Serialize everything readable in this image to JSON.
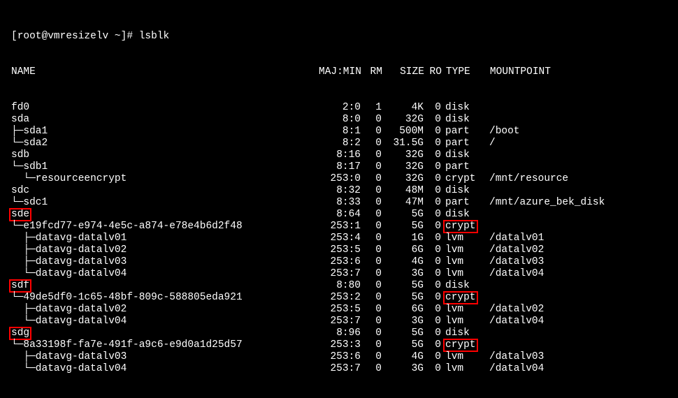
{
  "prompt": "[root@vmresizelv ~]# ",
  "command": "lsblk",
  "columns": [
    "NAME",
    "MAJ:MIN",
    "RM",
    "SIZE",
    "RO",
    "TYPE",
    "MOUNTPOINT"
  ],
  "highlight_color": "#ff0000",
  "rows": [
    {
      "name": "fd0",
      "prefix": "",
      "maj": "2:0",
      "rm": "1",
      "size": "4K",
      "ro": "0",
      "type": "disk",
      "mnt": "",
      "hl_name": false,
      "hl_type": false
    },
    {
      "name": "sda",
      "prefix": "",
      "maj": "8:0",
      "rm": "0",
      "size": "32G",
      "ro": "0",
      "type": "disk",
      "mnt": "",
      "hl_name": false,
      "hl_type": false
    },
    {
      "name": "sda1",
      "prefix": "├─",
      "maj": "8:1",
      "rm": "0",
      "size": "500M",
      "ro": "0",
      "type": "part",
      "mnt": "/boot",
      "hl_name": false,
      "hl_type": false
    },
    {
      "name": "sda2",
      "prefix": "└─",
      "maj": "8:2",
      "rm": "0",
      "size": "31.5G",
      "ro": "0",
      "type": "part",
      "mnt": "/",
      "hl_name": false,
      "hl_type": false
    },
    {
      "name": "sdb",
      "prefix": "",
      "maj": "8:16",
      "rm": "0",
      "size": "32G",
      "ro": "0",
      "type": "disk",
      "mnt": "",
      "hl_name": false,
      "hl_type": false
    },
    {
      "name": "sdb1",
      "prefix": "└─",
      "maj": "8:17",
      "rm": "0",
      "size": "32G",
      "ro": "0",
      "type": "part",
      "mnt": "",
      "hl_name": false,
      "hl_type": false
    },
    {
      "name": "resourceencrypt",
      "prefix": "  └─",
      "maj": "253:0",
      "rm": "0",
      "size": "32G",
      "ro": "0",
      "type": "crypt",
      "mnt": "/mnt/resource",
      "hl_name": false,
      "hl_type": false
    },
    {
      "name": "sdc",
      "prefix": "",
      "maj": "8:32",
      "rm": "0",
      "size": "48M",
      "ro": "0",
      "type": "disk",
      "mnt": "",
      "hl_name": false,
      "hl_type": false
    },
    {
      "name": "sdc1",
      "prefix": "└─",
      "maj": "8:33",
      "rm": "0",
      "size": "47M",
      "ro": "0",
      "type": "part",
      "mnt": "/mnt/azure_bek_disk",
      "hl_name": false,
      "hl_type": false
    },
    {
      "name": "sde",
      "prefix": "",
      "maj": "8:64",
      "rm": "0",
      "size": "5G",
      "ro": "0",
      "type": "disk",
      "mnt": "",
      "hl_name": true,
      "hl_type": false
    },
    {
      "name": "e19fcd77-e974-4e5c-a874-e78e4b6d2f48",
      "prefix": "└─",
      "maj": "253:1",
      "rm": "0",
      "size": "5G",
      "ro": "0",
      "type": "crypt",
      "mnt": "",
      "hl_name": false,
      "hl_type": true
    },
    {
      "name": "datavg-datalv01",
      "prefix": "  ├─",
      "maj": "253:4",
      "rm": "0",
      "size": "1G",
      "ro": "0",
      "type": "lvm",
      "mnt": "/datalv01",
      "hl_name": false,
      "hl_type": false
    },
    {
      "name": "datavg-datalv02",
      "prefix": "  ├─",
      "maj": "253:5",
      "rm": "0",
      "size": "6G",
      "ro": "0",
      "type": "lvm",
      "mnt": "/datalv02",
      "hl_name": false,
      "hl_type": false
    },
    {
      "name": "datavg-datalv03",
      "prefix": "  ├─",
      "maj": "253:6",
      "rm": "0",
      "size": "4G",
      "ro": "0",
      "type": "lvm",
      "mnt": "/datalv03",
      "hl_name": false,
      "hl_type": false
    },
    {
      "name": "datavg-datalv04",
      "prefix": "  └─",
      "maj": "253:7",
      "rm": "0",
      "size": "3G",
      "ro": "0",
      "type": "lvm",
      "mnt": "/datalv04",
      "hl_name": false,
      "hl_type": false
    },
    {
      "name": "sdf",
      "prefix": "",
      "maj": "8:80",
      "rm": "0",
      "size": "5G",
      "ro": "0",
      "type": "disk",
      "mnt": "",
      "hl_name": true,
      "hl_type": false
    },
    {
      "name": "49de5df0-1c65-48bf-809c-588805eda921",
      "prefix": "└─",
      "maj": "253:2",
      "rm": "0",
      "size": "5G",
      "ro": "0",
      "type": "crypt",
      "mnt": "",
      "hl_name": false,
      "hl_type": true
    },
    {
      "name": "datavg-datalv02",
      "prefix": "  ├─",
      "maj": "253:5",
      "rm": "0",
      "size": "6G",
      "ro": "0",
      "type": "lvm",
      "mnt": "/datalv02",
      "hl_name": false,
      "hl_type": false
    },
    {
      "name": "datavg-datalv04",
      "prefix": "  └─",
      "maj": "253:7",
      "rm": "0",
      "size": "3G",
      "ro": "0",
      "type": "lvm",
      "mnt": "/datalv04",
      "hl_name": false,
      "hl_type": false
    },
    {
      "name": "sdg",
      "prefix": "",
      "maj": "8:96",
      "rm": "0",
      "size": "5G",
      "ro": "0",
      "type": "disk",
      "mnt": "",
      "hl_name": true,
      "hl_type": false
    },
    {
      "name": "8a33198f-fa7e-491f-a9c6-e9d0a1d25d57",
      "prefix": "└─",
      "maj": "253:3",
      "rm": "0",
      "size": "5G",
      "ro": "0",
      "type": "crypt",
      "mnt": "",
      "hl_name": false,
      "hl_type": true
    },
    {
      "name": "datavg-datalv03",
      "prefix": "  ├─",
      "maj": "253:6",
      "rm": "0",
      "size": "4G",
      "ro": "0",
      "type": "lvm",
      "mnt": "/datalv03",
      "hl_name": false,
      "hl_type": false
    },
    {
      "name": "datavg-datalv04",
      "prefix": "  └─",
      "maj": "253:7",
      "rm": "0",
      "size": "3G",
      "ro": "0",
      "type": "lvm",
      "mnt": "/datalv04",
      "hl_name": false,
      "hl_type": false
    }
  ]
}
